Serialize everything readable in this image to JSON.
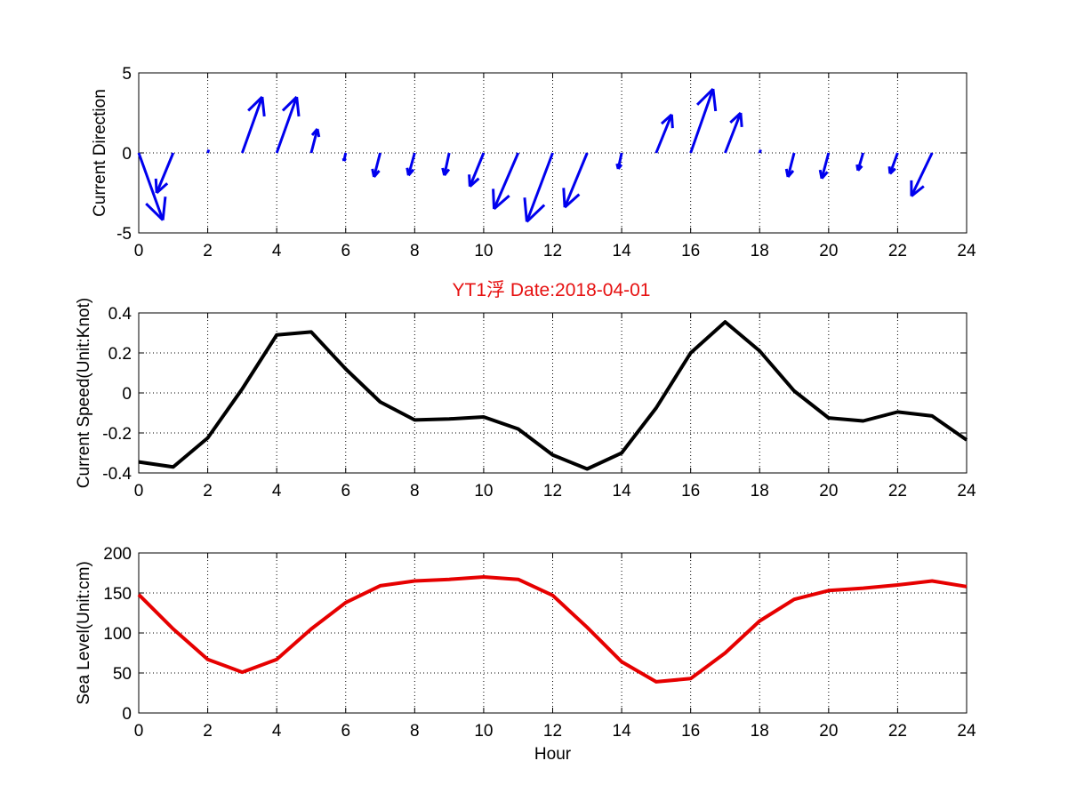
{
  "figure_title": "YT1浮    Date:2018-04-01",
  "colors": {
    "title": "#e61010",
    "arrow": "#0000ee",
    "speed_line": "#000000",
    "level_line": "#e60000"
  },
  "chart_data": [
    {
      "type": "quiver",
      "ylabel": "Current Direction",
      "xlabel": "",
      "xlim": [
        0,
        24
      ],
      "ylim": [
        -5,
        5
      ],
      "xticks": [
        0,
        2,
        4,
        6,
        8,
        10,
        12,
        14,
        16,
        18,
        20,
        22,
        24
      ],
      "yticks": [
        -5,
        0,
        5
      ],
      "xtick_labels": [
        "0",
        "2",
        "4",
        "6",
        "8",
        "10",
        "12",
        "14",
        "16",
        "18",
        "20",
        "22",
        "24"
      ],
      "ytick_labels": [
        "-5",
        "0",
        "5"
      ],
      "grid": true,
      "vectors": [
        {
          "x": 0,
          "u": 0.7,
          "v": -4.2
        },
        {
          "x": 1,
          "u": -0.48,
          "v": -2.5
        },
        {
          "x": 2,
          "u": 0.03,
          "v": 0.2
        },
        {
          "x": 3,
          "u": 0.58,
          "v": 3.5
        },
        {
          "x": 4,
          "u": 0.58,
          "v": 3.5
        },
        {
          "x": 5,
          "u": 0.18,
          "v": 1.5
        },
        {
          "x": 6,
          "u": -0.05,
          "v": -0.5
        },
        {
          "x": 7,
          "u": -0.18,
          "v": -1.5
        },
        {
          "x": 8,
          "u": -0.18,
          "v": -1.4
        },
        {
          "x": 9,
          "u": -0.14,
          "v": -1.4
        },
        {
          "x": 10,
          "u": -0.4,
          "v": -2.1
        },
        {
          "x": 11,
          "u": -0.7,
          "v": -3.5
        },
        {
          "x": 12,
          "u": -0.75,
          "v": -4.3
        },
        {
          "x": 13,
          "u": -0.65,
          "v": -3.4
        },
        {
          "x": 14,
          "u": -0.1,
          "v": -1.0
        },
        {
          "x": 15,
          "u": 0.45,
          "v": 2.4
        },
        {
          "x": 16,
          "u": 0.65,
          "v": 4.0
        },
        {
          "x": 17,
          "u": 0.45,
          "v": 2.5
        },
        {
          "x": 18,
          "u": 0.03,
          "v": 0.2
        },
        {
          "x": 19,
          "u": -0.18,
          "v": -1.5
        },
        {
          "x": 20,
          "u": -0.2,
          "v": -1.6
        },
        {
          "x": 21,
          "u": -0.15,
          "v": -1.1
        },
        {
          "x": 22,
          "u": -0.22,
          "v": -1.3
        },
        {
          "x": 23,
          "u": -0.6,
          "v": -2.7
        }
      ]
    },
    {
      "type": "line",
      "title": "YT1浮    Date:2018-04-01",
      "ylabel": "Current Speed(Unit:Knot)",
      "xlabel": "",
      "xlim": [
        0,
        24
      ],
      "ylim": [
        -0.4,
        0.4
      ],
      "xticks": [
        0,
        2,
        4,
        6,
        8,
        10,
        12,
        14,
        16,
        18,
        20,
        22,
        24
      ],
      "yticks": [
        -0.4,
        -0.2,
        0,
        0.2,
        0.4
      ],
      "xtick_labels": [
        "0",
        "2",
        "4",
        "6",
        "8",
        "10",
        "12",
        "14",
        "16",
        "18",
        "20",
        "22",
        "24"
      ],
      "ytick_labels": [
        "-0.4",
        "-0.2",
        "0",
        "0.2",
        "0.4"
      ],
      "grid": true,
      "x": [
        0,
        1,
        2,
        3,
        4,
        5,
        6,
        7,
        8,
        9,
        10,
        11,
        12,
        13,
        14,
        15,
        16,
        17,
        18,
        19,
        20,
        21,
        22,
        23,
        24
      ],
      "y": [
        -0.345,
        -0.37,
        -0.225,
        0.02,
        0.29,
        0.305,
        0.12,
        -0.045,
        -0.135,
        -0.13,
        -0.12,
        -0.18,
        -0.31,
        -0.38,
        -0.3,
        -0.075,
        0.2,
        0.355,
        0.21,
        0.01,
        -0.125,
        -0.14,
        -0.095,
        -0.115,
        -0.235
      ]
    },
    {
      "type": "line",
      "ylabel": "Sea Level(Unit:cm)",
      "xlabel": "Hour",
      "xlim": [
        0,
        24
      ],
      "ylim": [
        0,
        200
      ],
      "xticks": [
        0,
        2,
        4,
        6,
        8,
        10,
        12,
        14,
        16,
        18,
        20,
        22,
        24
      ],
      "yticks": [
        0,
        50,
        100,
        150,
        200
      ],
      "xtick_labels": [
        "0",
        "2",
        "4",
        "6",
        "8",
        "10",
        "12",
        "14",
        "16",
        "18",
        "20",
        "22",
        "24"
      ],
      "ytick_labels": [
        "0",
        "50",
        "100",
        "150",
        "200"
      ],
      "grid": true,
      "x": [
        0,
        1,
        2,
        3,
        4,
        5,
        6,
        7,
        8,
        9,
        10,
        11,
        12,
        13,
        14,
        15,
        16,
        17,
        18,
        19,
        20,
        21,
        22,
        23,
        24
      ],
      "y": [
        148,
        105,
        67,
        51,
        67,
        105,
        138,
        159,
        165,
        167,
        170,
        167,
        147,
        107,
        64,
        39,
        43,
        75,
        115,
        142,
        153,
        156,
        160,
        165,
        158
      ]
    }
  ]
}
